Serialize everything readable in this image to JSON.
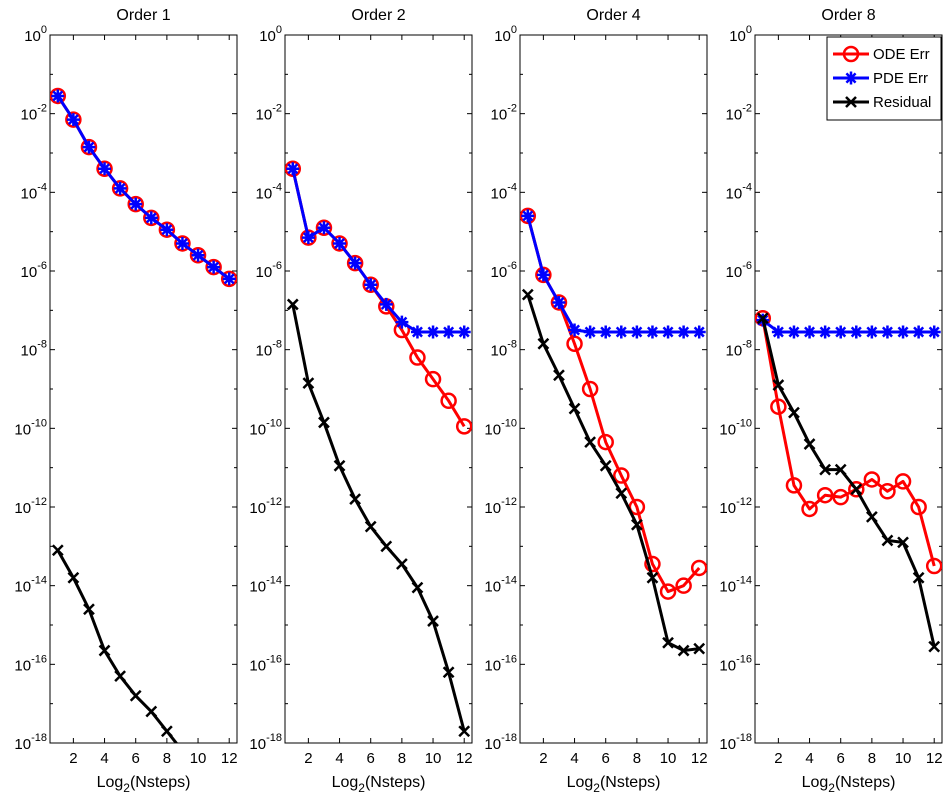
{
  "chart_data": [
    {
      "type": "line",
      "title": "Order 1",
      "xlabel_main": "Log",
      "xlabel_sub": "2",
      "xlabel_rest": "(Nsteps)",
      "xlim": [
        0.5,
        12.5
      ],
      "ylim_log10": [
        -18,
        0
      ],
      "yscale": "log",
      "x_ticks": [
        2,
        4,
        6,
        8,
        10,
        12
      ],
      "y_tick_exponents": [
        0,
        -2,
        -4,
        -6,
        -8,
        -10,
        -12,
        -14,
        -16,
        -18
      ],
      "grid": false,
      "series": [
        {
          "key": "ode",
          "color": "#ff0000",
          "marker": "circle",
          "x": [
            1,
            2,
            3,
            4,
            5,
            6,
            7,
            8,
            9,
            10,
            11,
            12
          ],
          "y_log10": [
            -1.55,
            -2.15,
            -2.85,
            -3.4,
            -3.9,
            -4.3,
            -4.65,
            -4.95,
            -5.3,
            -5.6,
            -5.9,
            -6.2
          ]
        },
        {
          "key": "pde",
          "color": "#0000ff",
          "marker": "star",
          "x": [
            1,
            2,
            3,
            4,
            5,
            6,
            7,
            8,
            9,
            10,
            11,
            12
          ],
          "y_log10": [
            -1.55,
            -2.15,
            -2.85,
            -3.4,
            -3.9,
            -4.3,
            -4.65,
            -4.95,
            -5.3,
            -5.6,
            -5.9,
            -6.2
          ]
        },
        {
          "key": "res",
          "color": "#000000",
          "marker": "x",
          "x": [
            1,
            2,
            3,
            4,
            5,
            6,
            7,
            8,
            9
          ],
          "y_log10": [
            -13.1,
            -13.8,
            -14.6,
            -15.65,
            -16.3,
            -16.8,
            -17.2,
            -17.7,
            -18.2
          ]
        }
      ]
    },
    {
      "type": "line",
      "title": "Order 2",
      "xlabel_main": "Log",
      "xlabel_sub": "2",
      "xlabel_rest": "(Nsteps)",
      "xlim": [
        0.5,
        12.5
      ],
      "ylim_log10": [
        -18,
        0
      ],
      "yscale": "log",
      "x_ticks": [
        2,
        4,
        6,
        8,
        10,
        12
      ],
      "y_tick_exponents": [
        0,
        -2,
        -4,
        -6,
        -8,
        -10,
        -12,
        -14,
        -16,
        -18
      ],
      "grid": false,
      "series": [
        {
          "key": "ode",
          "color": "#ff0000",
          "marker": "circle",
          "x": [
            1,
            2,
            3,
            4,
            5,
            6,
            7,
            8,
            9,
            10,
            11,
            12
          ],
          "y_log10": [
            -3.4,
            -5.15,
            -4.9,
            -5.3,
            -5.8,
            -6.35,
            -6.9,
            -7.5,
            -8.2,
            -8.75,
            -9.3,
            -9.95
          ]
        },
        {
          "key": "pde",
          "color": "#0000ff",
          "marker": "star",
          "x": [
            1,
            2,
            3,
            4,
            5,
            6,
            7,
            8,
            9,
            10,
            11,
            12
          ],
          "y_log10": [
            -3.4,
            -5.15,
            -4.9,
            -5.3,
            -5.8,
            -6.35,
            -6.85,
            -7.3,
            -7.55,
            -7.55,
            -7.55,
            -7.55
          ]
        },
        {
          "key": "res",
          "color": "#000000",
          "marker": "x",
          "x": [
            1,
            2,
            3,
            4,
            5,
            6,
            7,
            8,
            9,
            10,
            11,
            12
          ],
          "y_log10": [
            -6.85,
            -8.85,
            -9.85,
            -10.95,
            -11.8,
            -12.5,
            -13.0,
            -13.45,
            -14.05,
            -14.9,
            -16.2,
            -17.7
          ]
        }
      ]
    },
    {
      "type": "line",
      "title": "Order 4",
      "xlabel_main": "Log",
      "xlabel_sub": "2",
      "xlabel_rest": "(Nsteps)",
      "xlim": [
        0.5,
        12.5
      ],
      "ylim_log10": [
        -18,
        0
      ],
      "yscale": "log",
      "x_ticks": [
        2,
        4,
        6,
        8,
        10,
        12
      ],
      "y_tick_exponents": [
        0,
        -2,
        -4,
        -6,
        -8,
        -10,
        -12,
        -14,
        -16,
        -18
      ],
      "grid": false,
      "series": [
        {
          "key": "ode",
          "color": "#ff0000",
          "marker": "circle",
          "x": [
            1,
            2,
            3,
            4,
            5,
            6,
            7,
            8,
            9,
            10,
            11,
            12
          ],
          "y_log10": [
            -4.6,
            -6.1,
            -6.8,
            -7.85,
            -9.0,
            -10.35,
            -11.2,
            -12.0,
            -13.45,
            -14.15,
            -14.0,
            -13.55
          ]
        },
        {
          "key": "pde",
          "color": "#0000ff",
          "marker": "star",
          "x": [
            1,
            2,
            3,
            4,
            5,
            6,
            7,
            8,
            9,
            10,
            11,
            12
          ],
          "y_log10": [
            -4.6,
            -6.1,
            -6.8,
            -7.5,
            -7.55,
            -7.55,
            -7.55,
            -7.55,
            -7.55,
            -7.55,
            -7.55,
            -7.55
          ]
        },
        {
          "key": "res",
          "color": "#000000",
          "marker": "x",
          "x": [
            1,
            2,
            3,
            4,
            5,
            6,
            7,
            8,
            9,
            10,
            11,
            12
          ],
          "y_log10": [
            -6.6,
            -7.85,
            -8.65,
            -9.5,
            -10.35,
            -10.95,
            -11.65,
            -12.45,
            -13.8,
            -15.45,
            -15.65,
            -15.6
          ]
        }
      ]
    },
    {
      "type": "line",
      "title": "Order 8",
      "xlabel_main": "Log",
      "xlabel_sub": "2",
      "xlabel_rest": "(Nsteps)",
      "xlim": [
        0.5,
        12.5
      ],
      "ylim_log10": [
        -18,
        0
      ],
      "yscale": "log",
      "x_ticks": [
        2,
        4,
        6,
        8,
        10,
        12
      ],
      "y_tick_exponents": [
        0,
        -2,
        -4,
        -6,
        -8,
        -10,
        -12,
        -14,
        -16,
        -18
      ],
      "grid": false,
      "legend": {
        "placement": "top-right",
        "entries": [
          {
            "key": "ode",
            "label": "ODE Err"
          },
          {
            "key": "pde",
            "label": "PDE Err"
          },
          {
            "key": "res",
            "label": "Residual"
          }
        ]
      },
      "series": [
        {
          "key": "ode",
          "color": "#ff0000",
          "marker": "circle",
          "x": [
            1,
            2,
            3,
            4,
            5,
            6,
            7,
            8,
            9,
            10,
            11,
            12
          ],
          "y_log10": [
            -7.2,
            -9.45,
            -11.45,
            -12.05,
            -11.7,
            -11.75,
            -11.55,
            -11.3,
            -11.6,
            -11.35,
            -12.0,
            -13.5
          ]
        },
        {
          "key": "pde",
          "color": "#0000ff",
          "marker": "star",
          "x": [
            1,
            2,
            3,
            4,
            5,
            6,
            7,
            8,
            9,
            10,
            11,
            12
          ],
          "y_log10": [
            -7.25,
            -7.55,
            -7.55,
            -7.55,
            -7.55,
            -7.55,
            -7.55,
            -7.55,
            -7.55,
            -7.55,
            -7.55,
            -7.55
          ]
        },
        {
          "key": "res",
          "color": "#000000",
          "marker": "x",
          "x": [
            1,
            2,
            3,
            4,
            5,
            6,
            7,
            8,
            9,
            10,
            11,
            12
          ],
          "y_log10": [
            -7.2,
            -8.9,
            -9.6,
            -10.4,
            -11.05,
            -11.05,
            -11.55,
            -12.25,
            -12.85,
            -12.9,
            -13.8,
            -15.55
          ]
        }
      ]
    }
  ],
  "colors": {
    "ode": "#ff0000",
    "pde": "#0000ff",
    "res": "#000000",
    "axes": "#000000"
  }
}
